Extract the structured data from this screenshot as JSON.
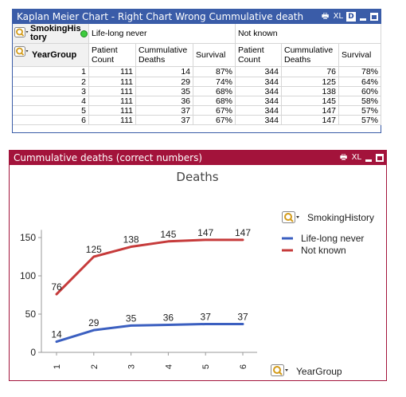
{
  "table_window": {
    "title": "Kaplan Meier Chart - Right Chart Wrong Cummulative death",
    "controls": {
      "print": "🖶",
      "xl": "XL",
      "detach": "D"
    },
    "dim_smoking": "SmokingHistory",
    "dim_year": "YearGroup",
    "groups": [
      "Life-long never",
      "Not known"
    ],
    "col_headers": [
      "Patient Count",
      "Cummulative Deaths",
      "Survival",
      "Patient Count",
      "Cummulative Deaths",
      "Survival"
    ],
    "rows": [
      [
        "1",
        "111",
        "14",
        "87%",
        "344",
        "76",
        "78%"
      ],
      [
        "2",
        "111",
        "29",
        "74%",
        "344",
        "125",
        "64%"
      ],
      [
        "3",
        "111",
        "35",
        "68%",
        "344",
        "138",
        "60%"
      ],
      [
        "4",
        "111",
        "36",
        "68%",
        "344",
        "145",
        "58%"
      ],
      [
        "5",
        "111",
        "37",
        "67%",
        "344",
        "147",
        "57%"
      ],
      [
        "6",
        "111",
        "37",
        "67%",
        "344",
        "147",
        "57%"
      ]
    ]
  },
  "chart_window": {
    "title": "Cummulative deaths (correct numbers)",
    "controls": {
      "print": "🖶",
      "xl": "XL"
    },
    "legend_title": "SmokingHistory",
    "x_dim_label": "YearGroup"
  },
  "chart_data": {
    "type": "line",
    "title": "Deaths",
    "x": [
      "1",
      "2",
      "3",
      "4",
      "5",
      "6"
    ],
    "ylim": [
      0,
      170
    ],
    "yticks": [
      0,
      50,
      100,
      150
    ],
    "grid": false,
    "legend_position": "right",
    "series": [
      {
        "name": "Life-long never",
        "color": "#3b5fc0",
        "values": [
          14,
          29,
          35,
          36,
          37,
          37
        ]
      },
      {
        "name": "Not known",
        "color": "#c63b3b",
        "values": [
          76,
          125,
          138,
          145,
          147,
          147
        ]
      }
    ]
  }
}
